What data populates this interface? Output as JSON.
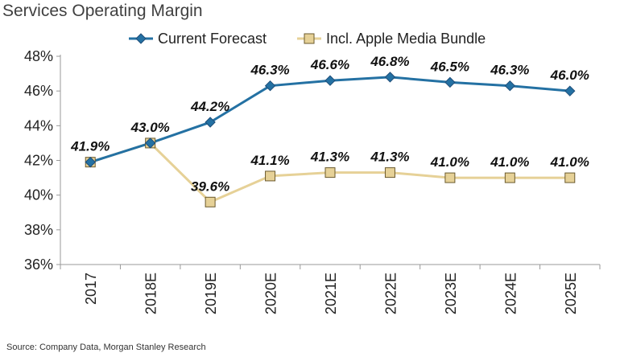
{
  "title": "Services Operating Margin",
  "source": "Source: Company Data, Morgan Stanley Research",
  "chart_data": {
    "type": "line",
    "title": "Services Operating Margin",
    "categories": [
      "2017",
      "2018E",
      "2019E",
      "2020E",
      "2021E",
      "2022E",
      "2023E",
      "2024E",
      "2025E"
    ],
    "ylim": [
      36,
      48
    ],
    "yticks": [
      36,
      38,
      40,
      42,
      44,
      46,
      48
    ],
    "ytick_format": "%",
    "grid": false,
    "legend_position": "top",
    "series": [
      {
        "name": "Current Forecast",
        "color": "#2471a3",
        "marker": "diamond",
        "values": [
          41.9,
          43.0,
          44.2,
          46.3,
          46.6,
          46.8,
          46.5,
          46.3,
          46.0
        ],
        "labels": [
          "41.9%",
          "43.0%",
          "44.2%",
          "46.3%",
          "46.6%",
          "46.8%",
          "46.5%",
          "46.3%",
          "46.0%"
        ]
      },
      {
        "name": "Incl. Apple Media Bundle",
        "color": "#e6d197",
        "marker": "square",
        "values": [
          41.9,
          43.0,
          39.6,
          41.1,
          41.3,
          41.3,
          41.0,
          41.0,
          41.0
        ],
        "labels": [
          "",
          "",
          "39.6%",
          "41.1%",
          "41.3%",
          "41.3%",
          "41.0%",
          "41.0%",
          "41.0%"
        ]
      }
    ]
  }
}
